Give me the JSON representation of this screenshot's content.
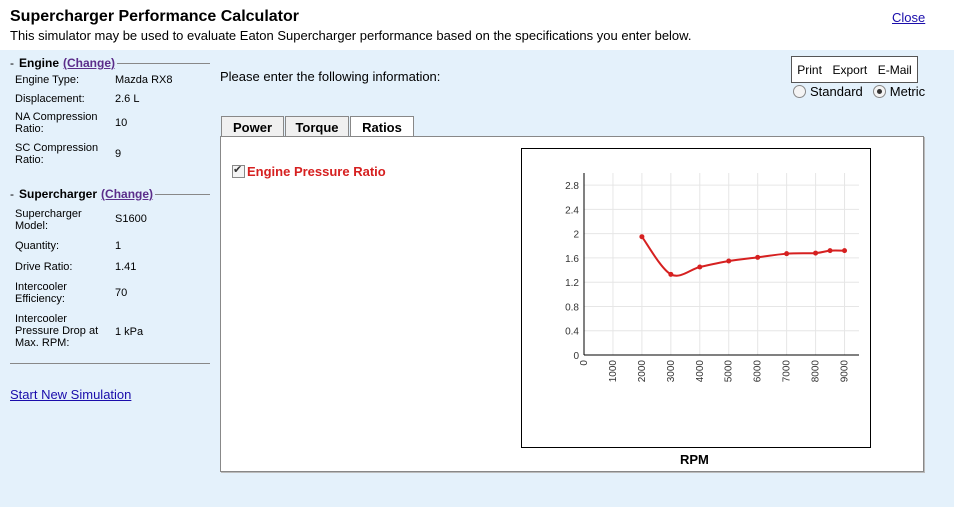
{
  "header": {
    "title": "Supercharger Performance Calculator",
    "subtitle": "This simulator may be used to evaluate Eaton Supercharger performance based on the specifications you enter below.",
    "close_label": "Close"
  },
  "sidebar": {
    "engine": {
      "heading": "Engine",
      "change_label": "(Change)",
      "rows": [
        {
          "label": "Engine Type:",
          "value": "Mazda RX8"
        },
        {
          "label": "Displacement:",
          "value": "2.6 L"
        },
        {
          "label": "NA Compression Ratio:",
          "value": "10"
        },
        {
          "label": "SC Compression Ratio:",
          "value": "9"
        }
      ]
    },
    "supercharger": {
      "heading": "Supercharger",
      "change_label": "(Change)",
      "rows": [
        {
          "label": "Supercharger Model:",
          "value": "S1600"
        },
        {
          "label": "Quantity:",
          "value": "1"
        },
        {
          "label": "Drive Ratio:",
          "value": "1.41"
        },
        {
          "label": "Intercooler Efficiency:",
          "value": "70"
        },
        {
          "label": "Intercooler Pressure Drop at Max. RPM:",
          "value": "1 kPa"
        }
      ]
    },
    "start_link": "Start New Simulation"
  },
  "main": {
    "prompt": "Please enter the following information:",
    "actions": {
      "print": "Print",
      "export": "Export",
      "email": "E-Mail"
    },
    "units": {
      "standard": "Standard",
      "metric": "Metric",
      "selected": "Metric"
    },
    "tabs": [
      {
        "label": "Power",
        "active": false
      },
      {
        "label": "Torque",
        "active": false
      },
      {
        "label": "Ratios",
        "active": true
      }
    ],
    "checkbox_label": "Engine Pressure Ratio"
  },
  "colors": {
    "series": "#d62020",
    "background": "#e4f1fb"
  },
  "chart_data": {
    "type": "line",
    "xlabel": "RPM",
    "ylabel": "",
    "title": "",
    "xlim": [
      0,
      9500
    ],
    "ylim": [
      0,
      3
    ],
    "xticks": [
      "0",
      "1000",
      "2000",
      "3000",
      "4000",
      "5000",
      "6000",
      "7000",
      "8000",
      "9000"
    ],
    "yticks": [
      "0",
      "0.4",
      "0.8",
      "1.2",
      "1.6",
      "2",
      "2.4",
      "2.8"
    ],
    "grid": true,
    "series": [
      {
        "x": [
          2000,
          3000,
          4000,
          5000,
          6000,
          7000,
          8000,
          8500,
          9000
        ],
        "y": [
          1.95,
          1.33,
          1.45,
          1.55,
          1.61,
          1.67,
          1.68,
          1.72,
          1.72
        ]
      }
    ]
  }
}
